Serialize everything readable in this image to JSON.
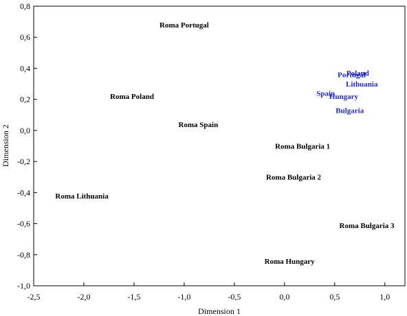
{
  "chart_data": {
    "type": "scatter",
    "title": "",
    "xlabel": "Dimension 1",
    "ylabel": "Dimension 2",
    "xlim": [
      -2.5,
      1.2
    ],
    "ylim": [
      -1.0,
      0.8
    ],
    "x_ticks": [
      "-2,5",
      "-2,0",
      "-1,5",
      "-1,0",
      "-0,5",
      "0,0",
      "0,5",
      "1,0"
    ],
    "x_tick_values": [
      -2.5,
      -2.0,
      -1.5,
      -1.0,
      -0.5,
      0.0,
      0.5,
      1.0
    ],
    "y_ticks": [
      "0,8",
      "0,6",
      "0,4",
      "0,2",
      "0,0",
      "-0,2",
      "-0,4",
      "-0,6",
      "-0,8",
      "-1,0"
    ],
    "y_tick_values": [
      0.8,
      0.6,
      0.4,
      0.2,
      0.0,
      -0.2,
      -0.4,
      -0.6,
      -0.8,
      -1.0
    ],
    "grid": false,
    "legend": "none",
    "series": [
      {
        "color": "#000000",
        "points": [
          {
            "label": "Roma Portugal",
            "x": -1.0,
            "y": 0.68
          },
          {
            "label": "Roma Poland",
            "x": -1.52,
            "y": 0.22
          },
          {
            "label": "Roma Spain",
            "x": -0.86,
            "y": 0.04
          },
          {
            "label": "Roma Lithuania",
            "x": -2.02,
            "y": -0.42
          },
          {
            "label": "Roma Bulgaria 1",
            "x": 0.18,
            "y": -0.1
          },
          {
            "label": "Roma Bulgaria 2",
            "x": 0.09,
            "y": -0.3
          },
          {
            "label": "Roma Bulgaria 3",
            "x": 0.82,
            "y": -0.61
          },
          {
            "label": "Roma Hungary",
            "x": 0.05,
            "y": -0.84
          }
        ]
      },
      {
        "color": "#1f28c9",
        "points": [
          {
            "label": "Poland",
            "x": 0.73,
            "y": 0.37
          },
          {
            "label": "Portugal",
            "x": 0.67,
            "y": 0.36
          },
          {
            "label": "Lithuania",
            "x": 0.77,
            "y": 0.3
          },
          {
            "label": "Spain",
            "x": 0.41,
            "y": 0.24
          },
          {
            "label": "Hungary",
            "x": 0.59,
            "y": 0.22
          },
          {
            "label": "Bulgaria",
            "x": 0.65,
            "y": 0.13
          }
        ]
      }
    ]
  }
}
